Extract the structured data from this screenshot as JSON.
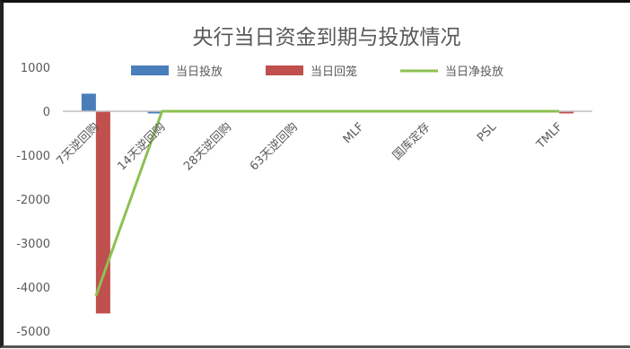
{
  "chart_data": {
    "type": "bar",
    "title": "央行当日资金到期与投放情况",
    "categories": [
      "7天逆回购",
      "14天逆回购",
      "28天逆回购",
      "63天逆回购",
      "MLF",
      "国库定存",
      "PSL",
      "TMLF"
    ],
    "series": [
      {
        "name": "当日投放",
        "type": "bar",
        "values": [
          400,
          -50,
          0,
          0,
          0,
          0,
          0,
          0
        ]
      },
      {
        "name": "当日回笼",
        "type": "bar",
        "values": [
          -4600,
          0,
          0,
          0,
          0,
          0,
          0,
          -50
        ]
      },
      {
        "name": "当日净投放",
        "type": "line",
        "values": [
          -4200,
          0,
          0,
          0,
          0,
          0,
          0,
          0
        ]
      }
    ],
    "ylim": [
      -5000,
      1000
    ],
    "yticks": [
      1000,
      0,
      -1000,
      -2000,
      -3000,
      -4000,
      -5000
    ],
    "legend_position": "top",
    "grid": false,
    "colors": {
      "invest": "#4a7ebb",
      "withdraw": "#c0504d",
      "net": "#8cc152",
      "axis": "#bfbfbf",
      "text": "#595959"
    }
  }
}
